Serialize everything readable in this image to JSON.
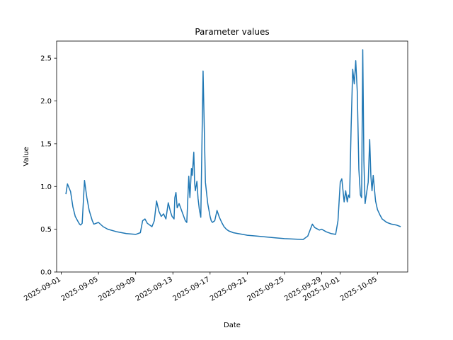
{
  "chart_data": {
    "type": "line",
    "title": "Parameter values",
    "xlabel": "Date",
    "ylabel": "Value",
    "ylim": [
      0,
      2.7
    ],
    "xlim": [
      "2025-08-31T12:00",
      "2025-10-08T06:00"
    ],
    "grid": false,
    "legend": "none",
    "line_color": "#1f77b4",
    "yticks": [
      {
        "value": 0.0,
        "label": "0.0"
      },
      {
        "value": 0.5,
        "label": "0.5"
      },
      {
        "value": 1.0,
        "label": "1.0"
      },
      {
        "value": 1.5,
        "label": "1.5"
      },
      {
        "value": 2.0,
        "label": "2.0"
      },
      {
        "value": 2.5,
        "label": "2.5"
      }
    ],
    "xticks": [
      {
        "value": "2025-09-01",
        "label": "2025-09-01"
      },
      {
        "value": "2025-09-05",
        "label": "2025-09-05"
      },
      {
        "value": "2025-09-09",
        "label": "2025-09-09"
      },
      {
        "value": "2025-09-13",
        "label": "2025-09-13"
      },
      {
        "value": "2025-09-17",
        "label": "2025-09-17"
      },
      {
        "value": "2025-09-21",
        "label": "2025-09-21"
      },
      {
        "value": "2025-09-25",
        "label": "2025-09-25"
      },
      {
        "value": "2025-09-29",
        "label": "2025-09-29"
      },
      {
        "value": "2025-10-01",
        "label": "2025-10-01"
      },
      {
        "value": "2025-10-05",
        "label": "2025-10-05"
      }
    ],
    "series": [
      {
        "x": [
          "2025-09-01T12:00",
          "2025-09-01T16:00",
          "2025-09-02T00:00",
          "2025-09-02T06:00",
          "2025-09-02T12:00",
          "2025-09-02T18:00",
          "2025-09-02T23:00",
          "2025-09-03T02:00",
          "2025-09-03T06:00",
          "2025-09-03T12:00",
          "2025-09-03T18:00",
          "2025-09-04T00:00",
          "2025-09-04T08:00",
          "2025-09-04T12:00",
          "2025-09-05T00:00",
          "2025-09-05T12:00",
          "2025-09-06T00:00",
          "2025-09-07T00:00",
          "2025-09-08T00:00",
          "2025-09-09T00:00",
          "2025-09-09T12:00",
          "2025-09-09T18:00",
          "2025-09-10T00:00",
          "2025-09-10T06:00",
          "2025-09-10T18:00",
          "2025-09-11T00:00",
          "2025-09-11T06:00",
          "2025-09-11T12:00",
          "2025-09-11T18:00",
          "2025-09-12T00:00",
          "2025-09-12T06:00",
          "2025-09-12T12:00",
          "2025-09-12T18:00",
          "2025-09-12T22:00",
          "2025-09-13T03:00",
          "2025-09-13T05:00",
          "2025-09-13T08:00",
          "2025-09-13T11:00",
          "2025-09-13T16:00",
          "2025-09-14T00:00",
          "2025-09-14T08:00",
          "2025-09-14T12:00",
          "2025-09-14T17:00",
          "2025-09-14T20:00",
          "2025-09-15T00:00",
          "2025-09-15T02:00",
          "2025-09-15T06:00",
          "2025-09-15T08:00",
          "2025-09-15T10:00",
          "2025-09-15T14:00",
          "2025-09-15T17:00",
          "2025-09-15T20:00",
          "2025-09-16T00:00",
          "2025-09-16T06:00",
          "2025-09-16T12:00",
          "2025-09-16T18:00",
          "2025-09-17T00:00",
          "2025-09-17T03:00",
          "2025-09-17T06:00",
          "2025-09-17T12:00",
          "2025-09-17T18:00",
          "2025-09-18T00:00",
          "2025-09-18T06:00",
          "2025-09-18T12:00",
          "2025-09-18T18:00",
          "2025-09-19T00:00",
          "2025-09-19T12:00",
          "2025-09-20T00:00",
          "2025-09-20T12:00",
          "2025-09-21T00:00",
          "2025-09-22T00:00",
          "2025-09-23T00:00",
          "2025-09-24T00:00",
          "2025-09-25T00:00",
          "2025-09-26T00:00",
          "2025-09-27T00:00",
          "2025-09-27T12:00",
          "2025-09-28T00:00",
          "2025-09-28T06:00",
          "2025-09-28T18:00",
          "2025-09-29T00:00",
          "2025-09-29T12:00",
          "2025-09-30T00:00",
          "2025-09-30T12:00",
          "2025-09-30T18:00",
          "2025-10-01T00:00",
          "2025-10-01T04:00",
          "2025-10-01T10:00",
          "2025-10-01T14:00",
          "2025-10-01T18:00",
          "2025-10-01T21:00",
          "2025-10-02T00:00",
          "2025-10-02T04:00",
          "2025-10-02T08:00",
          "2025-10-02T12:00",
          "2025-10-02T16:00",
          "2025-10-02T20:00",
          "2025-10-03T00:00",
          "2025-10-03T04:00",
          "2025-10-03T07:00",
          "2025-10-03T10:00",
          "2025-10-03T13:00",
          "2025-10-03T16:00",
          "2025-10-03T20:00",
          "2025-10-04T00:00",
          "2025-10-04T04:00",
          "2025-10-04T07:00",
          "2025-10-04T10:00",
          "2025-10-04T13:00",
          "2025-10-04T16:00",
          "2025-10-04T19:00",
          "2025-10-05T00:00",
          "2025-10-05T06:00",
          "2025-10-05T12:00",
          "2025-10-06T00:00",
          "2025-10-06T12:00",
          "2025-10-07T00:00",
          "2025-10-07T12:00"
        ],
        "y": [
          0.91,
          1.03,
          0.94,
          0.76,
          0.65,
          0.6,
          0.56,
          0.55,
          0.57,
          1.07,
          0.87,
          0.72,
          0.6,
          0.56,
          0.58,
          0.53,
          0.5,
          0.47,
          0.45,
          0.44,
          0.46,
          0.6,
          0.62,
          0.57,
          0.53,
          0.6,
          0.83,
          0.71,
          0.65,
          0.68,
          0.62,
          0.81,
          0.7,
          0.65,
          0.62,
          0.87,
          0.93,
          0.75,
          0.8,
          0.7,
          0.6,
          0.58,
          1.12,
          0.87,
          1.21,
          1.13,
          1.4,
          1.05,
          0.95,
          1.06,
          0.86,
          0.74,
          0.64,
          2.35,
          1.05,
          0.8,
          0.65,
          0.6,
          0.58,
          0.6,
          0.72,
          0.64,
          0.58,
          0.53,
          0.5,
          0.48,
          0.46,
          0.45,
          0.44,
          0.43,
          0.42,
          0.41,
          0.4,
          0.39,
          0.385,
          0.38,
          0.42,
          0.56,
          0.52,
          0.49,
          0.5,
          0.47,
          0.45,
          0.44,
          0.6,
          1.05,
          1.09,
          0.82,
          0.95,
          0.82,
          0.9,
          0.87,
          1.7,
          2.37,
          2.2,
          2.47,
          2.1,
          1.2,
          0.9,
          0.87,
          2.6,
          1.3,
          0.8,
          0.93,
          1.05,
          1.55,
          1.12,
          0.95,
          1.13,
          0.98,
          0.83,
          0.73,
          0.67,
          0.62,
          0.58,
          0.56,
          0.55,
          0.53
        ]
      }
    ]
  }
}
